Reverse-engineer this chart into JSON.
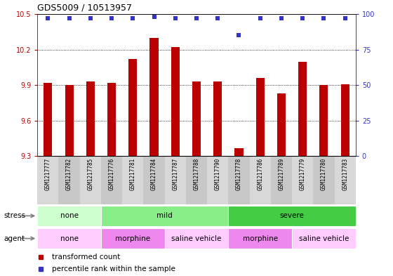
{
  "title": "GDS5009 / 10513957",
  "samples": [
    "GSM1217777",
    "GSM1217782",
    "GSM1217785",
    "GSM1217776",
    "GSM1217781",
    "GSM1217784",
    "GSM1217787",
    "GSM1217788",
    "GSM1217790",
    "GSM1217778",
    "GSM1217786",
    "GSM1217789",
    "GSM1217779",
    "GSM1217780",
    "GSM1217783"
  ],
  "bar_values": [
    9.92,
    9.9,
    9.93,
    9.92,
    10.12,
    10.3,
    10.22,
    9.93,
    9.93,
    9.37,
    9.96,
    9.83,
    10.1,
    9.9,
    9.91
  ],
  "pct_ranks": [
    97,
    97,
    97,
    97,
    97,
    98,
    97,
    97,
    97,
    85,
    97,
    97,
    97,
    97,
    97
  ],
  "ylim_left": [
    9.3,
    10.5
  ],
  "ylim_right": [
    0,
    100
  ],
  "yticks_left": [
    9.3,
    9.6,
    9.9,
    10.2,
    10.5
  ],
  "yticks_right": [
    0,
    25,
    50,
    75,
    100
  ],
  "bar_color": "#bb0000",
  "percentile_color": "#3333cc",
  "background_color": "#ffffff",
  "grid_lines": [
    9.6,
    9.9,
    10.2
  ],
  "stress_groups": [
    {
      "label": "none",
      "start": 0,
      "end": 3,
      "color": "#ccffcc"
    },
    {
      "label": "mild",
      "start": 3,
      "end": 9,
      "color": "#88ee88"
    },
    {
      "label": "severe",
      "start": 9,
      "end": 15,
      "color": "#44cc44"
    }
  ],
  "agent_groups": [
    {
      "label": "none",
      "start": 0,
      "end": 3,
      "color": "#ffccff"
    },
    {
      "label": "morphine",
      "start": 3,
      "end": 6,
      "color": "#ee88ee"
    },
    {
      "label": "saline vehicle",
      "start": 6,
      "end": 9,
      "color": "#ffccff"
    },
    {
      "label": "morphine",
      "start": 9,
      "end": 12,
      "color": "#ee88ee"
    },
    {
      "label": "saline vehicle",
      "start": 12,
      "end": 15,
      "color": "#ffccff"
    }
  ],
  "xtick_col_colors": [
    "#d8d8d8",
    "#c8c8c8"
  ],
  "legend_bar_label": "transformed count",
  "legend_pct_label": "percentile rank within the sample"
}
